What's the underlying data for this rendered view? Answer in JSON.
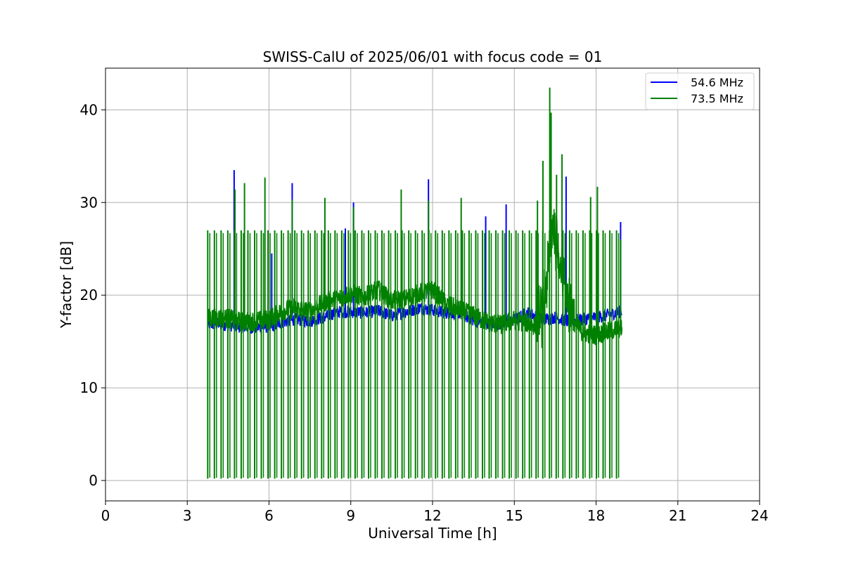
{
  "chart_data": {
    "type": "line",
    "title": "SWISS-CalU of 2025/06/01 with focus code = 01",
    "xlabel": "Universal Time [h]",
    "ylabel": "Y-factor [dB]",
    "xlim": [
      0,
      24
    ],
    "ylim": [
      -2.2,
      44.5
    ],
    "xticks": [
      0,
      3,
      6,
      9,
      12,
      15,
      18,
      21,
      24
    ],
    "yticks": [
      0,
      10,
      20,
      30,
      40
    ],
    "grid": true,
    "legend_position": "top-right",
    "series": [
      {
        "name": "54.6 MHz",
        "color": "#0000ff",
        "x": [
          3.75,
          4.0,
          4.5,
          5.0,
          5.5,
          6.0,
          6.5,
          7.0,
          7.5,
          8.0,
          8.5,
          9.0,
          9.5,
          10.0,
          10.5,
          11.0,
          11.5,
          12.0,
          12.5,
          13.0,
          13.5,
          14.0,
          14.5,
          15.0,
          15.5,
          16.0,
          16.5,
          17.0,
          17.5,
          18.0,
          18.5,
          18.95
        ],
        "values": [
          16.9,
          16.9,
          16.8,
          16.6,
          16.5,
          16.6,
          17.1,
          17.4,
          17.2,
          17.6,
          18.2,
          18.2,
          18.1,
          18.3,
          17.8,
          18.2,
          18.6,
          18.4,
          18.1,
          18.1,
          17.3,
          16.9,
          16.9,
          17.3,
          18.1,
          17.4,
          17.6,
          17.2,
          17.4,
          17.6,
          17.9,
          18.3
        ],
        "spikes": [
          {
            "x": 4.72,
            "y": 33.5
          },
          {
            "x": 6.1,
            "y": 24.5
          },
          {
            "x": 6.85,
            "y": 32.1
          },
          {
            "x": 8.8,
            "y": 27.2
          },
          {
            "x": 9.1,
            "y": 30.0
          },
          {
            "x": 11.85,
            "y": 32.5
          },
          {
            "x": 13.95,
            "y": 28.5
          },
          {
            "x": 14.7,
            "y": 29.8
          },
          {
            "x": 16.9,
            "y": 32.8
          },
          {
            "x": 18.9,
            "y": 27.9
          }
        ]
      },
      {
        "name": "73.5 MHz",
        "color": "#008000",
        "x": [
          3.75,
          4.0,
          4.5,
          5.0,
          5.5,
          6.0,
          6.5,
          7.0,
          7.5,
          8.0,
          8.5,
          9.0,
          9.5,
          10.0,
          10.5,
          11.0,
          11.5,
          12.0,
          12.5,
          13.0,
          13.5,
          14.0,
          14.5,
          15.0,
          15.5,
          16.0,
          16.2,
          16.4,
          16.6,
          17.0,
          17.5,
          18.0,
          18.5,
          18.95
        ],
        "values": [
          17.5,
          17.6,
          17.5,
          17.1,
          17.2,
          17.4,
          18.3,
          18.6,
          18.2,
          19.2,
          19.6,
          20.2,
          19.8,
          20.6,
          19.4,
          19.6,
          20.2,
          20.6,
          19.0,
          18.4,
          17.8,
          17.1,
          16.8,
          17.3,
          17.0,
          16.4,
          20.0,
          27.0,
          24.0,
          17.8,
          16.0,
          15.7,
          16.1,
          16.5
        ],
        "spikes": [
          {
            "x": 4.75,
            "y": 31.4
          },
          {
            "x": 5.1,
            "y": 32.1
          },
          {
            "x": 5.85,
            "y": 32.7
          },
          {
            "x": 6.85,
            "y": 30.3
          },
          {
            "x": 8.05,
            "y": 30.5
          },
          {
            "x": 9.1,
            "y": 29.5
          },
          {
            "x": 10.85,
            "y": 31.4
          },
          {
            "x": 11.85,
            "y": 30.2
          },
          {
            "x": 13.05,
            "y": 30.5
          },
          {
            "x": 15.85,
            "y": 30.2
          },
          {
            "x": 16.05,
            "y": 34.5
          },
          {
            "x": 16.3,
            "y": 42.4
          },
          {
            "x": 16.35,
            "y": 39.7
          },
          {
            "x": 16.55,
            "y": 33.0
          },
          {
            "x": 16.75,
            "y": 35.2
          },
          {
            "x": 17.8,
            "y": 30.6
          },
          {
            "x": 18.05,
            "y": 31.7
          },
          {
            "x": 18.9,
            "y": 26.0
          }
        ],
        "cal_pulses": {
          "x_start": 3.75,
          "x_end": 18.75,
          "count": 62,
          "high": 27.0,
          "low": 0.2
        }
      }
    ],
    "legend": [
      "54.6 MHz",
      "73.5 MHz"
    ]
  }
}
